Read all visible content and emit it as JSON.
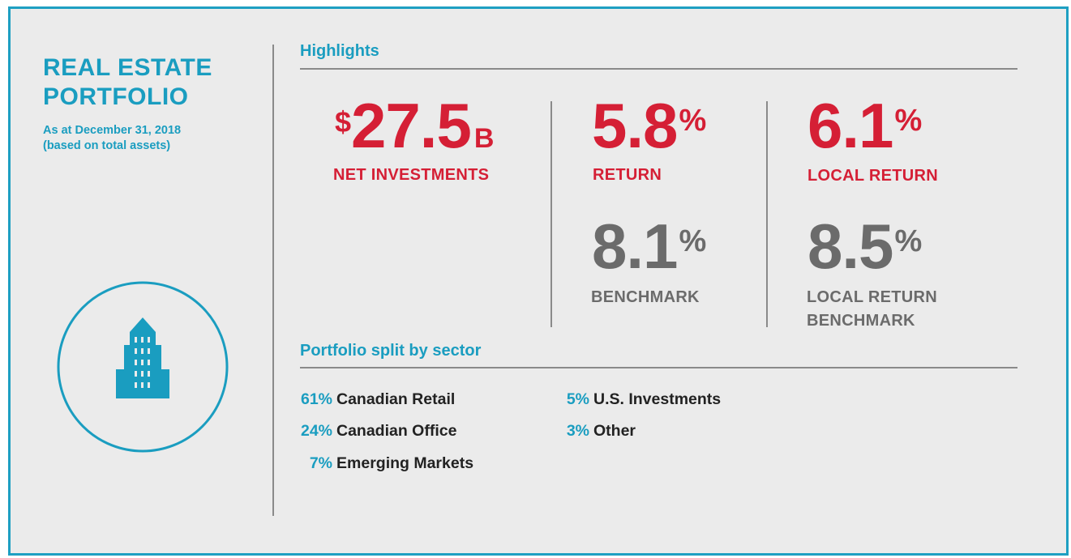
{
  "portfolio": {
    "title_line1": "REAL ESTATE",
    "title_line2": "PORTFOLIO",
    "subtitle_line1": "As at December 31, 2018",
    "subtitle_line2": "(based on total assets)"
  },
  "highlights": {
    "title": "Highlights",
    "net_investments": {
      "prefix": "$",
      "value": "27.5",
      "suffix": "B",
      "label": "NET INVESTMENTS"
    },
    "return": {
      "value": "5.8",
      "suffix": "%",
      "label": "RETURN"
    },
    "local_return": {
      "value": "6.1",
      "suffix": "%",
      "label": "LOCAL RETURN"
    },
    "benchmark": {
      "value": "8.1",
      "suffix": "%",
      "label": "BENCHMARK"
    },
    "local_return_benchmark": {
      "value": "8.5",
      "suffix": "%",
      "label_line1": "LOCAL RETURN",
      "label_line2": "BENCHMARK"
    }
  },
  "sectors": {
    "title": "Portfolio split by sector",
    "items": [
      {
        "percent": "61%",
        "name": "Canadian Retail"
      },
      {
        "percent": "24%",
        "name": "Canadian Office"
      },
      {
        "percent": "7%",
        "name": "Emerging Markets"
      },
      {
        "percent": "5%",
        "name": "U.S. Investments"
      },
      {
        "percent": "3%",
        "name": "Other"
      }
    ]
  }
}
